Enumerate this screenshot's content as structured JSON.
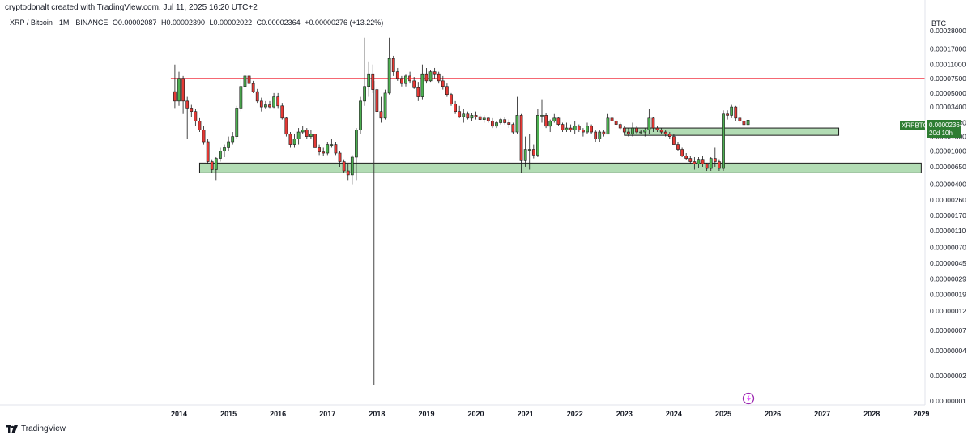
{
  "header": {
    "created_by": "cryptodonalt created with TradingView.com, Jul 11, 2025 16:20 UTC+2"
  },
  "legend": {
    "symbol": "XRP / Bitcoin · 1M · BINANCE",
    "open": "O0.00002087",
    "high": "H0.00002390",
    "low": "L0.00002022",
    "close": "C0.00002364",
    "change": "+0.00000276 (+13.22%)"
  },
  "price_scale": {
    "unit": "BTC",
    "labels": [
      "0.00028000",
      "0.00017000",
      "0.00011000",
      "0.00007500",
      "0.00005000",
      "0.00003400",
      "0.00002200",
      "0.00001500",
      "0.00001000",
      "0.00000650",
      "0.00000400",
      "0.00000260",
      "0.00000170",
      "0.00000110",
      "0.00000070",
      "0.00000045",
      "0.00000029",
      "0.00000019",
      "0.00000012",
      "0.00000007",
      "0.00000004",
      "0.00000002",
      "0.00000001"
    ]
  },
  "time_scale": {
    "labels": [
      "2014",
      "2015",
      "2016",
      "2017",
      "2018",
      "2019",
      "2020",
      "2021",
      "2022",
      "2023",
      "2024",
      "2025",
      "2026",
      "2027",
      "2028",
      "2029"
    ]
  },
  "price_tag": {
    "symbol": "XRPBTC",
    "price": "0.00002364",
    "countdown": "20d 10h"
  },
  "footer": {
    "brand": "TradingView"
  },
  "colors": {
    "up": "#26a69a",
    "down": "#ef5350",
    "candle_up_body": "#4caf50",
    "candle_down_body": "#e53935",
    "resistance_line": "#f23645",
    "zone_fill": "#a5d6a7",
    "tag_bg": "#2e7d32"
  },
  "chart_data": {
    "type": "candlestick",
    "symbol": "XRPBTC",
    "timeframe": "1M",
    "scale": "log",
    "x_range": [
      "2013-06",
      "2029-01"
    ],
    "y_range": [
      1e-08,
      0.00028
    ],
    "horizontal_line": {
      "price": 7.5e-05,
      "color": "#f23645"
    },
    "zones": [
      {
        "from": "2023-01",
        "to": "2027-05",
        "low": 1.55e-05,
        "high": 1.9e-05
      },
      {
        "from": "2014-06",
        "to": "2029-01",
        "low": 5.5e-06,
        "high": 7.2e-06
      }
    ],
    "vertical_line": {
      "date": "2017-12"
    },
    "candles": [
      [
        "2013-12",
        5.2e-05,
        0.00011,
        3.3e-05,
        4e-05
      ],
      [
        "2014-01",
        4e-05,
        9e-05,
        3.5e-05,
        7.5e-05
      ],
      [
        "2014-02",
        7.5e-05,
        8e-05,
        2.8e-05,
        4e-05
      ],
      [
        "2014-03",
        4e-05,
        4.5e-05,
        1.4e-05,
        3.3e-05
      ],
      [
        "2014-04",
        3.3e-05,
        3.6e-05,
        2.6e-05,
        3e-05
      ],
      [
        "2014-05",
        3e-05,
        3.2e-05,
        2e-05,
        2.3e-05
      ],
      [
        "2014-06",
        2.3e-05,
        2.5e-05,
        1.7e-05,
        1.8e-05
      ],
      [
        "2014-07",
        1.8e-05,
        2e-05,
        1.2e-05,
        1.3e-05
      ],
      [
        "2014-08",
        1.3e-05,
        1.4e-05,
        7e-06,
        7.5e-06
      ],
      [
        "2014-09",
        7.5e-06,
        8e-06,
        5.5e-06,
        6e-06
      ],
      [
        "2014-10",
        6e-06,
        8.5e-06,
        4.5e-06,
        8.2e-06
      ],
      [
        "2014-11",
        8.2e-06,
        1.1e-05,
        7.5e-06,
        1e-05
      ],
      [
        "2014-12",
        1e-05,
        1.2e-05,
        8.5e-06,
        1.1e-05
      ],
      [
        "2015-01",
        1.1e-05,
        1.5e-05,
        1e-05,
        1.3e-05
      ],
      [
        "2015-02",
        1.3e-05,
        1.7e-05,
        1.2e-05,
        1.5e-05
      ],
      [
        "2015-03",
        1.5e-05,
        3.5e-05,
        1.4e-05,
        3.3e-05
      ],
      [
        "2015-04",
        3.3e-05,
        7.5e-05,
        3e-05,
        6e-05
      ],
      [
        "2015-05",
        6e-05,
        9e-05,
        5e-05,
        8e-05
      ],
      [
        "2015-06",
        8e-05,
        8.5e-05,
        6e-05,
        6.5e-05
      ],
      [
        "2015-07",
        6.5e-05,
        7e-05,
        5e-05,
        5.2e-05
      ],
      [
        "2015-08",
        5.2e-05,
        5.6e-05,
        3.8e-05,
        4e-05
      ],
      [
        "2015-09",
        4e-05,
        4.4e-05,
        3e-05,
        3.4e-05
      ],
      [
        "2015-10",
        3.4e-05,
        4e-05,
        3.2e-05,
        3.6e-05
      ],
      [
        "2015-11",
        3.6e-05,
        4e-05,
        3.3e-05,
        3.4e-05
      ],
      [
        "2015-12",
        3.4e-05,
        5e-05,
        3.3e-05,
        4.5e-05
      ],
      [
        "2016-01",
        4.5e-05,
        5e-05,
        3.3e-05,
        3.5e-05
      ],
      [
        "2016-02",
        3.5e-05,
        3.8e-05,
        2.4e-05,
        2.5e-05
      ],
      [
        "2016-03",
        2.5e-05,
        2.6e-05,
        1.5e-05,
        1.6e-05
      ],
      [
        "2016-04",
        1.6e-05,
        1.7e-05,
        1.1e-05,
        1.2e-05
      ],
      [
        "2016-05",
        1.2e-05,
        1.6e-05,
        1.1e-05,
        1.4e-05
      ],
      [
        "2016-06",
        1.4e-05,
        1.9e-05,
        1.2e-05,
        1.7e-05
      ],
      [
        "2016-07",
        1.7e-05,
        2e-05,
        1.6e-05,
        1.8e-05
      ],
      [
        "2016-08",
        1.8e-05,
        1.9e-05,
        1.4e-05,
        1.5e-05
      ],
      [
        "2016-09",
        1.5e-05,
        1.8e-05,
        1.4e-05,
        1.6e-05
      ],
      [
        "2016-10",
        1.6e-05,
        1.6e-05,
        1.1e-05,
        1.1e-05
      ],
      [
        "2016-11",
        1.1e-05,
        1.2e-05,
        9e-06,
        9.8e-06
      ],
      [
        "2016-12",
        9.8e-06,
        1.1e-05,
        8.8e-06,
        9.5e-06
      ],
      [
        "2017-01",
        9.5e-06,
        1.3e-05,
        9e-06,
        1.2e-05
      ],
      [
        "2017-02",
        1.2e-05,
        1.4e-05,
        1.1e-05,
        1.2e-05
      ],
      [
        "2017-03",
        1.2e-05,
        1.3e-05,
        9e-06,
        9.5e-06
      ],
      [
        "2017-04",
        9.5e-06,
        1e-05,
        6.5e-06,
        7.5e-06
      ],
      [
        "2017-05",
        7.5e-06,
        8e-06,
        5.5e-06,
        5.8e-06
      ],
      [
        "2017-06",
        5.8e-06,
        7e-06,
        4.5e-06,
        5.2e-06
      ],
      [
        "2017-07",
        5.2e-06,
        9e-06,
        4e-06,
        8.5e-06
      ],
      [
        "2017-08",
        8.5e-06,
        1.9e-05,
        4.5e-06,
        1.8e-05
      ],
      [
        "2017-09",
        1.8e-05,
        4.5e-05,
        1.6e-05,
        4e-05
      ],
      [
        "2017-10",
        4e-05,
        0.00023,
        3.5e-05,
        6e-05
      ],
      [
        "2017-11",
        6e-05,
        0.00012,
        4.5e-05,
        8.5e-05
      ],
      [
        "2017-12",
        8.5e-05,
        0.00011,
        5e-05,
        5.5e-05
      ],
      [
        "2018-01",
        5.5e-05,
        6e-05,
        2.8e-05,
        3e-05
      ],
      [
        "2018-02",
        3e-05,
        4.5e-05,
        2.2e-05,
        2.5e-05
      ],
      [
        "2018-03",
        2.5e-05,
        5.5e-05,
        2.4e-05,
        5e-05
      ],
      [
        "2018-04",
        5e-05,
        0.00023,
        4.8e-05,
        0.00013
      ],
      [
        "2018-05",
        0.00013,
        0.00014,
        8e-05,
        9e-05
      ],
      [
        "2018-06",
        9e-05,
        0.0001,
        7e-05,
        7.5e-05
      ],
      [
        "2018-07",
        7.5e-05,
        8e-05,
        6e-05,
        6.5e-05
      ],
      [
        "2018-08",
        6.5e-05,
        8.5e-05,
        6e-05,
        8e-05
      ],
      [
        "2018-09",
        8e-05,
        9e-05,
        6.5e-05,
        7e-05
      ],
      [
        "2018-10",
        7e-05,
        7.8e-05,
        5.6e-05,
        5.8e-05
      ],
      [
        "2018-11",
        5.8e-05,
        6.8e-05,
        4e-05,
        4.5e-05
      ],
      [
        "2018-12",
        4.5e-05,
        0.00011,
        4.2e-05,
        8.5e-05
      ],
      [
        "2019-01",
        8.5e-05,
        0.0001,
        6.5e-05,
        7e-05
      ],
      [
        "2019-02",
        7e-05,
        9.5e-05,
        6.8e-05,
        9e-05
      ],
      [
        "2019-03",
        9e-05,
        0.0001,
        7.5e-05,
        8.5e-05
      ],
      [
        "2019-04",
        8.5e-05,
        9e-05,
        6.5e-05,
        7e-05
      ],
      [
        "2019-05",
        7e-05,
        8e-05,
        5.5e-05,
        6e-05
      ],
      [
        "2019-06",
        6e-05,
        6.5e-05,
        4.5e-05,
        4.8e-05
      ],
      [
        "2019-07",
        4.8e-05,
        5e-05,
        3.5e-05,
        3.7e-05
      ],
      [
        "2019-08",
        3.7e-05,
        4e-05,
        2.8e-05,
        3e-05
      ],
      [
        "2019-09",
        3e-05,
        3.5e-05,
        2.5e-05,
        2.6e-05
      ],
      [
        "2019-10",
        2.6e-05,
        3.2e-05,
        2.2e-05,
        2.8e-05
      ],
      [
        "2019-11",
        2.8e-05,
        3e-05,
        2.4e-05,
        2.5e-05
      ],
      [
        "2019-12",
        2.5e-05,
        2.9e-05,
        2.3e-05,
        2.7e-05
      ],
      [
        "2020-01",
        2.7e-05,
        3e-05,
        2.4e-05,
        2.6e-05
      ],
      [
        "2020-02",
        2.6e-05,
        2.8e-05,
        2.3e-05,
        2.4e-05
      ],
      [
        "2020-03",
        2.4e-05,
        2.7e-05,
        2.2e-05,
        2.5e-05
      ],
      [
        "2020-04",
        2.5e-05,
        2.6e-05,
        2.2e-05,
        2.3e-05
      ],
      [
        "2020-05",
        2.3e-05,
        2.5e-05,
        1.9e-05,
        2e-05
      ],
      [
        "2020-06",
        2e-05,
        2.3e-05,
        1.9e-05,
        2.2e-05
      ],
      [
        "2020-07",
        2.2e-05,
        2.5e-05,
        2.1e-05,
        2.4e-05
      ],
      [
        "2020-08",
        2.4e-05,
        2.6e-05,
        2.1e-05,
        2.2e-05
      ],
      [
        "2020-09",
        2.2e-05,
        2.4e-05,
        1.9e-05,
        2.1e-05
      ],
      [
        "2020-10",
        2.1e-05,
        2.2e-05,
        1.6e-05,
        1.7e-05
      ],
      [
        "2020-11",
        1.7e-05,
        4.5e-05,
        1.6e-05,
        2.7e-05
      ],
      [
        "2020-12",
        2.7e-05,
        2.8e-05,
        5.5e-06,
        7.7e-06
      ],
      [
        "2021-01",
        7.7e-06,
        1.5e-05,
        6.5e-06,
        1.05e-05
      ],
      [
        "2021-02",
        1.05e-05,
        1.6e-05,
        6e-06,
        1.05e-05
      ],
      [
        "2021-03",
        1.05e-05,
        1.2e-05,
        8.2e-06,
        9e-06
      ],
      [
        "2021-04",
        9e-06,
        3.2e-05,
        8.5e-06,
        2.7e-05
      ],
      [
        "2021-05",
        2.7e-05,
        4.2e-05,
        2.2e-05,
        2.7e-05
      ],
      [
        "2021-06",
        2.7e-05,
        2.9e-05,
        1.9e-05,
        2e-05
      ],
      [
        "2021-07",
        2e-05,
        2.4e-05,
        1.7e-05,
        2.3e-05
      ],
      [
        "2021-08",
        2.3e-05,
        2.8e-05,
        2.2e-05,
        2.5e-05
      ],
      [
        "2021-09",
        2.5e-05,
        2.6e-05,
        2e-05,
        2.1e-05
      ],
      [
        "2021-10",
        2.1e-05,
        2.2e-05,
        1.7e-05,
        1.8e-05
      ],
      [
        "2021-11",
        1.8e-05,
        2.2e-05,
        1.7e-05,
        1.9e-05
      ],
      [
        "2021-12",
        1.9e-05,
        2.1e-05,
        1.7e-05,
        1.8e-05
      ],
      [
        "2022-01",
        1.8e-05,
        2.3e-05,
        1.6e-05,
        2e-05
      ],
      [
        "2022-02",
        2e-05,
        2.1e-05,
        1.7e-05,
        1.8e-05
      ],
      [
        "2022-03",
        1.8e-05,
        1.9e-05,
        1.5e-05,
        1.7e-05
      ],
      [
        "2022-04",
        1.7e-05,
        2.2e-05,
        1.6e-05,
        2e-05
      ],
      [
        "2022-05",
        2e-05,
        2.1e-05,
        1.6e-05,
        1.7e-05
      ],
      [
        "2022-06",
        1.7e-05,
        1.8e-05,
        1.3e-05,
        1.4e-05
      ],
      [
        "2022-07",
        1.4e-05,
        1.8e-05,
        1.3e-05,
        1.7e-05
      ],
      [
        "2022-08",
        1.7e-05,
        1.8e-05,
        1.5e-05,
        1.6e-05
      ],
      [
        "2022-09",
        1.6e-05,
        2.8e-05,
        1.6e-05,
        2.5e-05
      ],
      [
        "2022-10",
        2.5e-05,
        2.9e-05,
        2.1e-05,
        2.3e-05
      ],
      [
        "2022-11",
        2.3e-05,
        2.4e-05,
        2e-05,
        2.1e-05
      ],
      [
        "2022-12",
        2.1e-05,
        2.2e-05,
        1.8e-05,
        1.9e-05
      ],
      [
        "2023-01",
        1.9e-05,
        2e-05,
        1.6e-05,
        1.7e-05
      ],
      [
        "2023-02",
        1.7e-05,
        1.9e-05,
        1.5e-05,
        1.6e-05
      ],
      [
        "2023-03",
        1.6e-05,
        2.2e-05,
        1.5e-05,
        1.9e-05
      ],
      [
        "2023-04",
        1.9e-05,
        2e-05,
        1.6e-05,
        1.7e-05
      ],
      [
        "2023-05",
        1.7e-05,
        1.8e-05,
        1.6e-05,
        1.7e-05
      ],
      [
        "2023-06",
        1.7e-05,
        1.9e-05,
        1.5e-05,
        1.8e-05
      ],
      [
        "2023-07",
        1.8e-05,
        3.2e-05,
        1.6e-05,
        2.5e-05
      ],
      [
        "2023-08",
        2.5e-05,
        2.6e-05,
        1.7e-05,
        1.9e-05
      ],
      [
        "2023-09",
        1.9e-05,
        2e-05,
        1.7e-05,
        1.8e-05
      ],
      [
        "2023-10",
        1.8e-05,
        1.9e-05,
        1.6e-05,
        1.7e-05
      ],
      [
        "2023-11",
        1.7e-05,
        1.8e-05,
        1.5e-05,
        1.6e-05
      ],
      [
        "2023-12",
        1.6e-05,
        1.7e-05,
        1.4e-05,
        1.5e-05
      ],
      [
        "2024-01",
        1.5e-05,
        1.6e-05,
        1.2e-05,
        1.2e-05
      ],
      [
        "2024-02",
        1.2e-05,
        1.3e-05,
        1e-05,
        1.05e-05
      ],
      [
        "2024-03",
        1.05e-05,
        1.1e-05,
        8.5e-06,
        8.8e-06
      ],
      [
        "2024-04",
        8.8e-06,
        9.5e-06,
        7.8e-06,
        8.2e-06
      ],
      [
        "2024-05",
        8.2e-06,
        8.8e-06,
        7e-06,
        7.5e-06
      ],
      [
        "2024-06",
        7.5e-06,
        8.5e-06,
        6e-06,
        7e-06
      ],
      [
        "2024-07",
        7e-06,
        8.5e-06,
        6.2e-06,
        8e-06
      ],
      [
        "2024-08",
        8e-06,
        8.8e-06,
        6.5e-06,
        7e-06
      ],
      [
        "2024-09",
        7e-06,
        7.2e-06,
        5.8e-06,
        6.2e-06
      ],
      [
        "2024-10",
        6.2e-06,
        8.5e-06,
        5.8e-06,
        8.2e-06
      ],
      [
        "2024-11",
        8.2e-06,
        1.1e-05,
        6.5e-06,
        7.5e-06
      ],
      [
        "2024-12",
        7.5e-06,
        8e-06,
        5.8e-06,
        6.2e-06
      ],
      [
        "2025-01",
        6.2e-06,
        3.1e-05,
        5.8e-06,
        2.8e-05
      ],
      [
        "2025-02",
        2.8e-05,
        3.1e-05,
        2.4e-05,
        2.7e-05
      ],
      [
        "2025-03",
        2.7e-05,
        3.6e-05,
        2.5e-05,
        3.4e-05
      ],
      [
        "2025-04",
        3.4e-05,
        3.5e-05,
        2.3e-05,
        2.5e-05
      ],
      [
        "2025-05",
        2.5e-05,
        3.6e-05,
        2.2e-05,
        2.3e-05
      ],
      [
        "2025-06",
        2.3e-05,
        2.5e-05,
        1.8e-05,
        2.087e-05
      ],
      [
        "2025-07",
        2.087e-05,
        2.39e-05,
        2.022e-05,
        2.364e-05
      ]
    ]
  }
}
